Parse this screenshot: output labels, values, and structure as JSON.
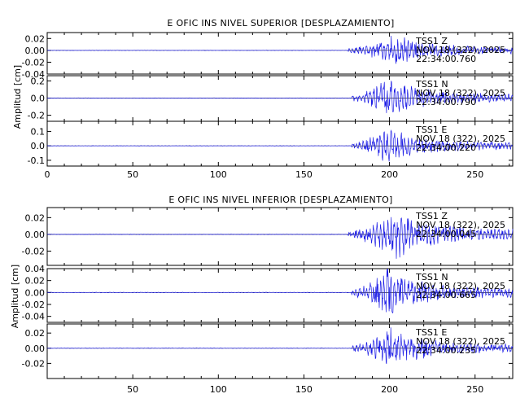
{
  "chart_data": [
    {
      "type": "line",
      "title": "E OFIC INS NIVEL SUPERIOR [DESPLAZAMIENTO]",
      "ylabel": "Amplitud [cm]",
      "xlim": [
        0,
        272
      ],
      "xticks": [
        "0",
        "50",
        "100",
        "150",
        "200",
        "250"
      ],
      "trace_color": "#1f1fe6",
      "panels": [
        {
          "ylim": [
            -0.04,
            0.03
          ],
          "yticks": [
            "0.02",
            "0.00",
            "-0.02",
            "-0.04"
          ],
          "annotation": [
            "TSS1   Z",
            "NOV 18 (322), 2025",
            "22:34:00.760"
          ],
          "peak_amplitude": 0.028,
          "onset_s": 176,
          "peak_s": 203
        },
        {
          "ylim": [
            -0.27,
            0.26
          ],
          "yticks": [
            "0.2",
            "0.0",
            "-0.2"
          ],
          "annotation": [
            "TSS1   N",
            "NOV 18 (322), 2025",
            "22:34:00.790"
          ],
          "peak_amplitude": 0.24,
          "onset_s": 178,
          "peak_s": 198
        },
        {
          "ylim": [
            -0.14,
            0.17
          ],
          "yticks": [
            "0.1",
            "0.0",
            "-0.1"
          ],
          "annotation": [
            "TSS1   E",
            "NOV 18 (322), 2025",
            "22:34:00.220"
          ],
          "peak_amplitude": 0.13,
          "onset_s": 178,
          "peak_s": 199
        }
      ]
    },
    {
      "type": "line",
      "title": "E OFIC INS NIVEL INFERIOR [DESPLAZAMIENTO]",
      "ylabel": "Amplitud [cm]",
      "xlim": [
        0,
        272
      ],
      "xticks": [
        "50",
        "100",
        "150",
        "200",
        "250"
      ],
      "trace_color": "#1f1fe6",
      "panels": [
        {
          "ylim": [
            -0.037,
            0.032
          ],
          "yticks": [
            "0.02",
            "0.00",
            "-0.02"
          ],
          "annotation": [
            "TSS1   Z",
            "NOV 18 (322), 2025",
            "22:34:00.045"
          ],
          "peak_amplitude": 0.03,
          "onset_s": 176,
          "peak_s": 204
        },
        {
          "ylim": [
            -0.05,
            0.04
          ],
          "yticks": [
            "0.04",
            "0.02",
            "0.00",
            "-0.02",
            "-0.04"
          ],
          "annotation": [
            "TSS1   N",
            "NOV 18 (322), 2025",
            "22:34:00.665"
          ],
          "peak_amplitude": 0.04,
          "onset_s": 178,
          "peak_s": 198
        },
        {
          "ylim": [
            -0.04,
            0.032
          ],
          "yticks": [
            "0.02",
            "0.00",
            "-0.02"
          ],
          "annotation": [
            "TSS1   E",
            "NOV 18 (322), 2025",
            "22:34:00.235"
          ],
          "peak_amplitude": 0.028,
          "onset_s": 178,
          "peak_s": 200
        }
      ]
    }
  ]
}
